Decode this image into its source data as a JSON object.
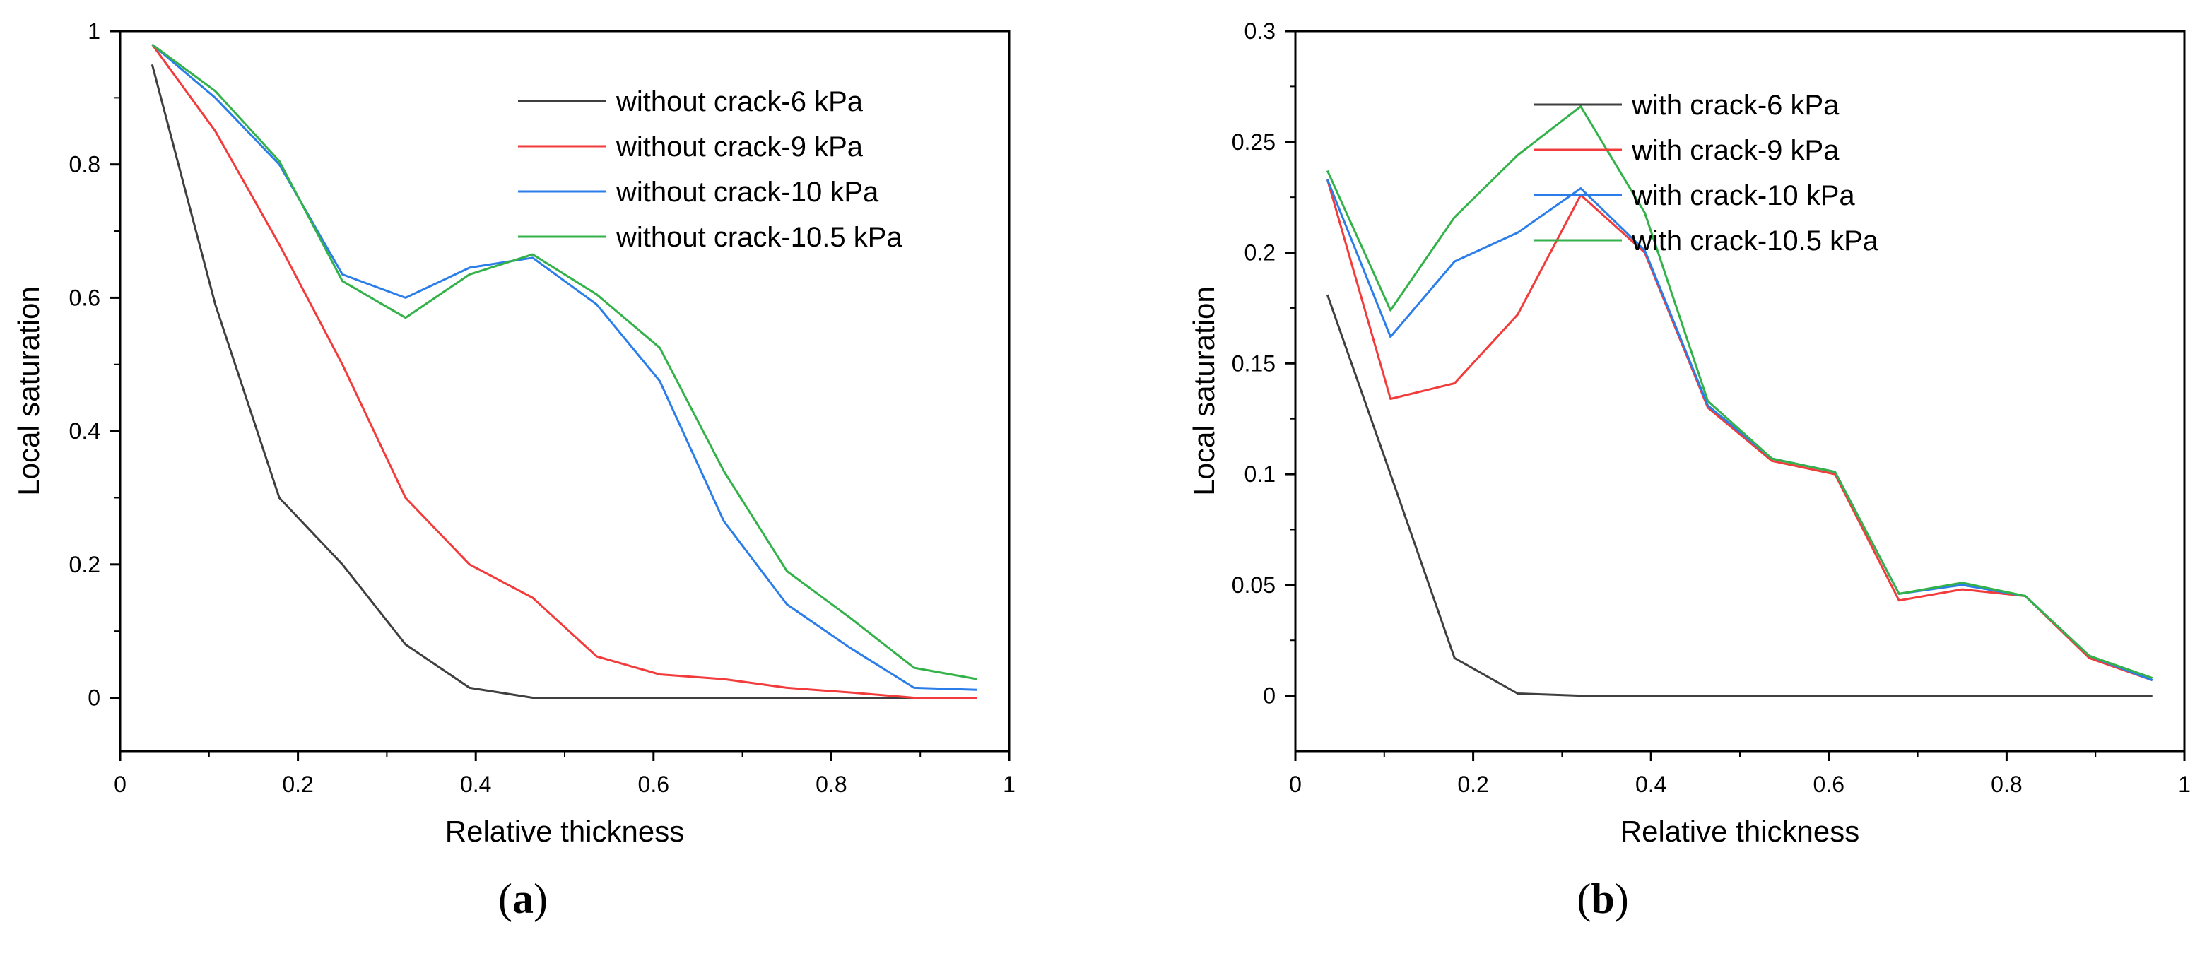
{
  "colors": {
    "series": [
      "#3f3f3f",
      "#f23b3b",
      "#2b7de9",
      "#33b24a"
    ],
    "axis": "#000000"
  },
  "chart_data": [
    {
      "panel": "a",
      "caption_letter": "a",
      "type": "line",
      "xlabel": "Relative thickness",
      "ylabel": "Local saturation",
      "xlim": [
        0,
        1
      ],
      "ylim": [
        -0.08,
        1
      ],
      "xticks": [
        0,
        0.2,
        0.4,
        0.6,
        0.8,
        1
      ],
      "xtick_labels": [
        "0",
        "0.2",
        "0.4",
        "0.6",
        "0.8",
        "1"
      ],
      "yticks": [
        0,
        0.2,
        0.4,
        0.6,
        0.8,
        1
      ],
      "ytick_labels": [
        "0",
        "0.2",
        "0.4",
        "0.6",
        "0.8",
        "1"
      ],
      "grid": false,
      "legend_position": "top-right",
      "x": [
        0.036,
        0.107,
        0.179,
        0.25,
        0.321,
        0.393,
        0.464,
        0.536,
        0.607,
        0.679,
        0.75,
        0.821,
        0.893,
        0.964
      ],
      "series": [
        {
          "name": "without crack-6 kPa",
          "values": [
            0.95,
            0.59,
            0.3,
            0.2,
            0.08,
            0.015,
            0.0,
            0.0,
            0.0,
            0.0,
            0.0,
            0.0,
            0.0,
            0.0
          ]
        },
        {
          "name": "without crack-9 kPa",
          "values": [
            0.98,
            0.85,
            0.68,
            0.5,
            0.3,
            0.2,
            0.15,
            0.062,
            0.035,
            0.028,
            0.015,
            0.008,
            0.0,
            0.0
          ]
        },
        {
          "name": "without crack-10 kPa",
          "values": [
            0.98,
            0.9,
            0.8,
            0.635,
            0.6,
            0.645,
            0.66,
            0.59,
            0.475,
            0.265,
            0.14,
            0.075,
            0.015,
            0.012
          ]
        },
        {
          "name": "without crack-10.5 kPa",
          "values": [
            0.98,
            0.91,
            0.805,
            0.625,
            0.57,
            0.635,
            0.665,
            0.605,
            0.525,
            0.34,
            0.19,
            0.12,
            0.045,
            0.028
          ]
        }
      ]
    },
    {
      "panel": "b",
      "caption_letter": "b",
      "type": "line",
      "xlabel": "Relative thickness",
      "ylabel": "Local saturation",
      "xlim": [
        0,
        1
      ],
      "ylim": [
        -0.025,
        0.3
      ],
      "xticks": [
        0,
        0.2,
        0.4,
        0.6,
        0.8,
        1
      ],
      "xtick_labels": [
        "0",
        "0.2",
        "0.4",
        "0.6",
        "0.8",
        "1"
      ],
      "yticks": [
        0,
        0.05,
        0.1,
        0.15,
        0.2,
        0.25,
        0.3
      ],
      "ytick_labels": [
        "0",
        "0.05",
        "0.1",
        "0.15",
        "0.2",
        "0.25",
        "0.3"
      ],
      "grid": false,
      "legend_position": "top-right",
      "x": [
        0.036,
        0.107,
        0.179,
        0.25,
        0.321,
        0.393,
        0.464,
        0.536,
        0.607,
        0.679,
        0.75,
        0.821,
        0.893,
        0.964
      ],
      "series": [
        {
          "name": "with crack-6 kPa",
          "values": [
            0.181,
            0.1,
            0.017,
            0.001,
            0.0,
            0.0,
            0.0,
            0.0,
            0.0,
            0.0,
            0.0,
            0.0,
            0.0,
            0.0
          ]
        },
        {
          "name": "with crack-9 kPa",
          "values": [
            0.233,
            0.134,
            0.141,
            0.172,
            0.226,
            0.2,
            0.13,
            0.106,
            0.1,
            0.043,
            0.048,
            0.045,
            0.017,
            0.007
          ]
        },
        {
          "name": "with crack-10 kPa",
          "values": [
            0.233,
            0.162,
            0.196,
            0.209,
            0.229,
            0.201,
            0.131,
            0.107,
            0.101,
            0.046,
            0.05,
            0.045,
            0.018,
            0.007
          ]
        },
        {
          "name": "with crack-10.5 kPa",
          "values": [
            0.237,
            0.174,
            0.216,
            0.244,
            0.266,
            0.218,
            0.133,
            0.107,
            0.101,
            0.046,
            0.051,
            0.045,
            0.018,
            0.008
          ]
        }
      ]
    }
  ]
}
